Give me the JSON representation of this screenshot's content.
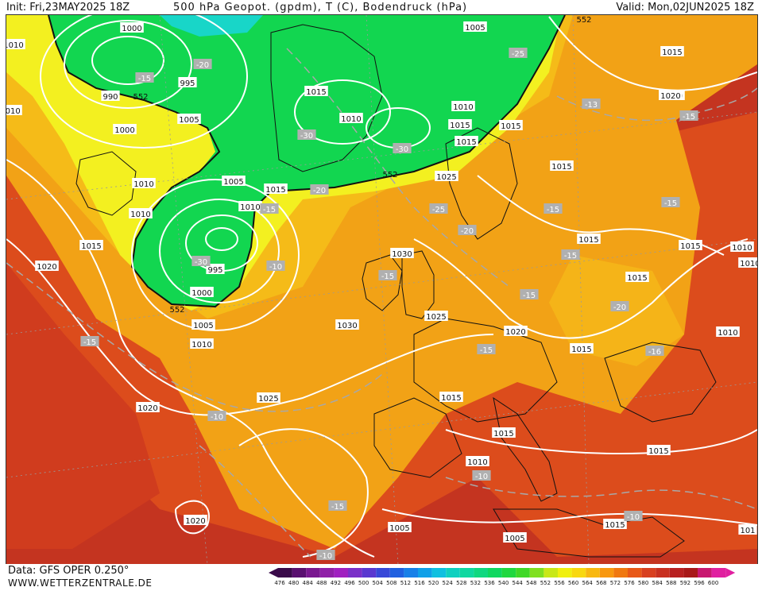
{
  "header": {
    "init_label": "Init: Fri,23MAY2025 18Z",
    "title": "500 hPa Geopot. (gpdm), T (C), Bodendruck (hPa)",
    "valid_label": "Valid: Mon,02JUN2025 18Z"
  },
  "footer": {
    "data_source": "Data: GFS OPER 0.250°",
    "website": "WWW.WETTERZENTRALE.DE"
  },
  "legend": {
    "ticks": [
      "476",
      "480",
      "484",
      "488",
      "492",
      "496",
      "500",
      "504",
      "508",
      "512",
      "516",
      "520",
      "524",
      "528",
      "532",
      "536",
      "540",
      "544",
      "548",
      "552",
      "556",
      "560",
      "564",
      "568",
      "572",
      "576",
      "580",
      "584",
      "588",
      "592",
      "596",
      "600"
    ],
    "colors": [
      "#3a0a4a",
      "#5a1070",
      "#7a1890",
      "#9020a8",
      "#a020c0",
      "#7a30c8",
      "#5a38d0",
      "#3848d8",
      "#2060e0",
      "#1880e8",
      "#10a0e8",
      "#10c0e0",
      "#10d0c0",
      "#10d8a0",
      "#10d880",
      "#10d860",
      "#20d840",
      "#40d828",
      "#80e020",
      "#c8e818",
      "#f0f010",
      "#f8d810",
      "#f8b810",
      "#f89810",
      "#f07810",
      "#e85818",
      "#d84020",
      "#c83020",
      "#b82020",
      "#a81818",
      "#c81870",
      "#e020a0"
    ]
  },
  "map": {
    "colors": {
      "green": "#12d650",
      "yellow": "#f3f020",
      "orange": "#f2a216",
      "red": "#dc4c1c",
      "darkred": "#c43420",
      "deepred": "#b02418"
    },
    "pressure_labels": [
      "1000",
      "995",
      "990",
      "1005",
      "1000",
      "1010",
      "1010",
      "1015",
      "1005",
      "1010",
      "1015",
      "995",
      "1000",
      "1005",
      "1010",
      "1020",
      "1020",
      "1015",
      "1010",
      "1015",
      "1005",
      "1015",
      "1015",
      "1010",
      "1015",
      "1020",
      "1015",
      "1025",
      "1030",
      "1030",
      "1025",
      "1020",
      "1015",
      "1015",
      "1015",
      "1010",
      "1010",
      "1005",
      "1005",
      "1020",
      "1015",
      "1015",
      "1015",
      "1015",
      "1010",
      "1010",
      "1010",
      "1010",
      "1020",
      "1005",
      "1015",
      "1025",
      "1020",
      "1015",
      "101"
    ],
    "temperature_labels": [
      "-20",
      "-15",
      "-25",
      "-13",
      "-15",
      "-20",
      "-30",
      "-30",
      "-25",
      "-15",
      "-20",
      "-15",
      "-15",
      "-30",
      "-10",
      "-15",
      "-20",
      "-15",
      "-15",
      "-15",
      "-15",
      "-20",
      "-15",
      "-16",
      "-10",
      "-10",
      "-15",
      "-10",
      "-10",
      "-10"
    ],
    "geopotential_labels": [
      "552",
      "552",
      "552",
      "552"
    ]
  }
}
